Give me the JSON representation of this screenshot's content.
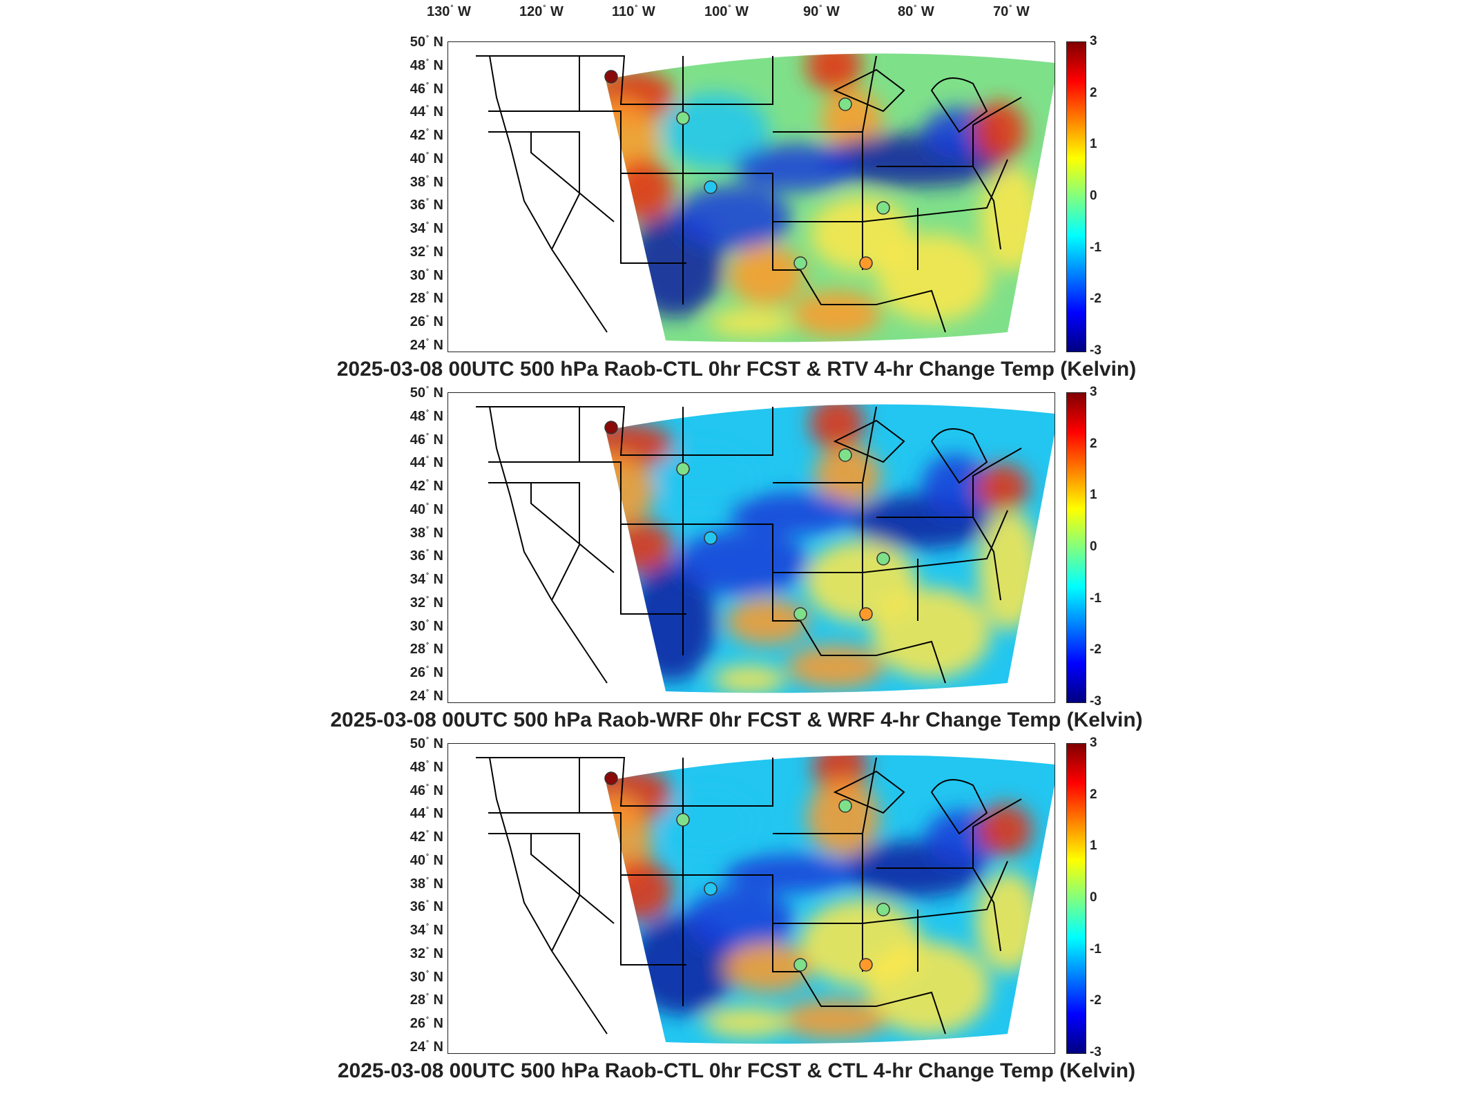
{
  "longitude_labels": [
    "130",
    "120",
    "110",
    "100",
    "90",
    "80",
    "70"
  ],
  "longitude_suffix": "W",
  "latitude_labels": [
    "50",
    "48",
    "46",
    "44",
    "42",
    "40",
    "38",
    "36",
    "34",
    "32",
    "30",
    "28",
    "26",
    "24"
  ],
  "latitude_suffix": "N",
  "degree_symbol": "°",
  "colorbar": {
    "ticks": [
      "3",
      "2",
      "1",
      "0",
      "-1",
      "-2",
      "-3"
    ],
    "colormap": [
      "#800000",
      "#ff0000",
      "#ff8000",
      "#ffff00",
      "#80ff80",
      "#00ffff",
      "#0080ff",
      "#0000ff",
      "#000080"
    ]
  },
  "panels": [
    {
      "title": "2025-03-08 00UTC 500 hPa Raob-CTL 0hr FCST & RTV 4-hr Change Temp (Kelvin)"
    },
    {
      "title": "2025-03-08 00UTC 500 hPa Raob-WRF 0hr FCST & WRF 4-hr Change Temp (Kelvin)"
    },
    {
      "title": "2025-03-08 00UTC 500 hPa Raob-CTL 0hr FCST & CTL 4-hr Change Temp (Kelvin)"
    }
  ],
  "colors": {
    "cold_blue": "#1a3cd8",
    "deep_blue": "#0a1fa0",
    "cyan": "#22c6f0",
    "green": "#7fe08a",
    "yellow": "#ffe84a",
    "orange": "#ff9a2a",
    "red": "#e83010",
    "dark_red": "#8a0a0a"
  }
}
